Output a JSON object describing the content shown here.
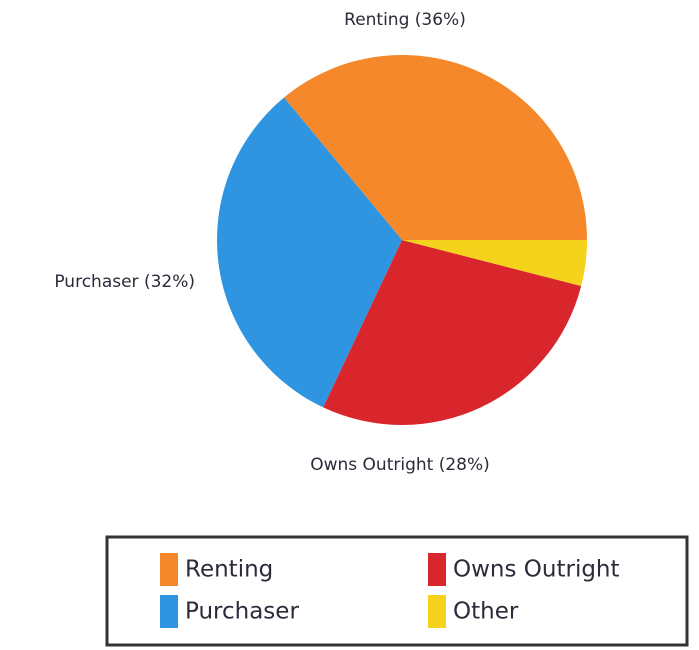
{
  "chart_data": {
    "type": "pie",
    "categories": [
      "Renting",
      "Purchaser",
      "Owns Outright",
      "Other"
    ],
    "values": [
      36,
      32,
      28,
      4
    ],
    "value_labels": [
      "Renting (36%)",
      "Purchaser (32%)",
      "Owns Outright (28%)",
      null
    ],
    "colors": [
      "#f5882a",
      "#2f95e0",
      "#d9262c",
      "#f5d21c"
    ],
    "legend": "bottom"
  }
}
